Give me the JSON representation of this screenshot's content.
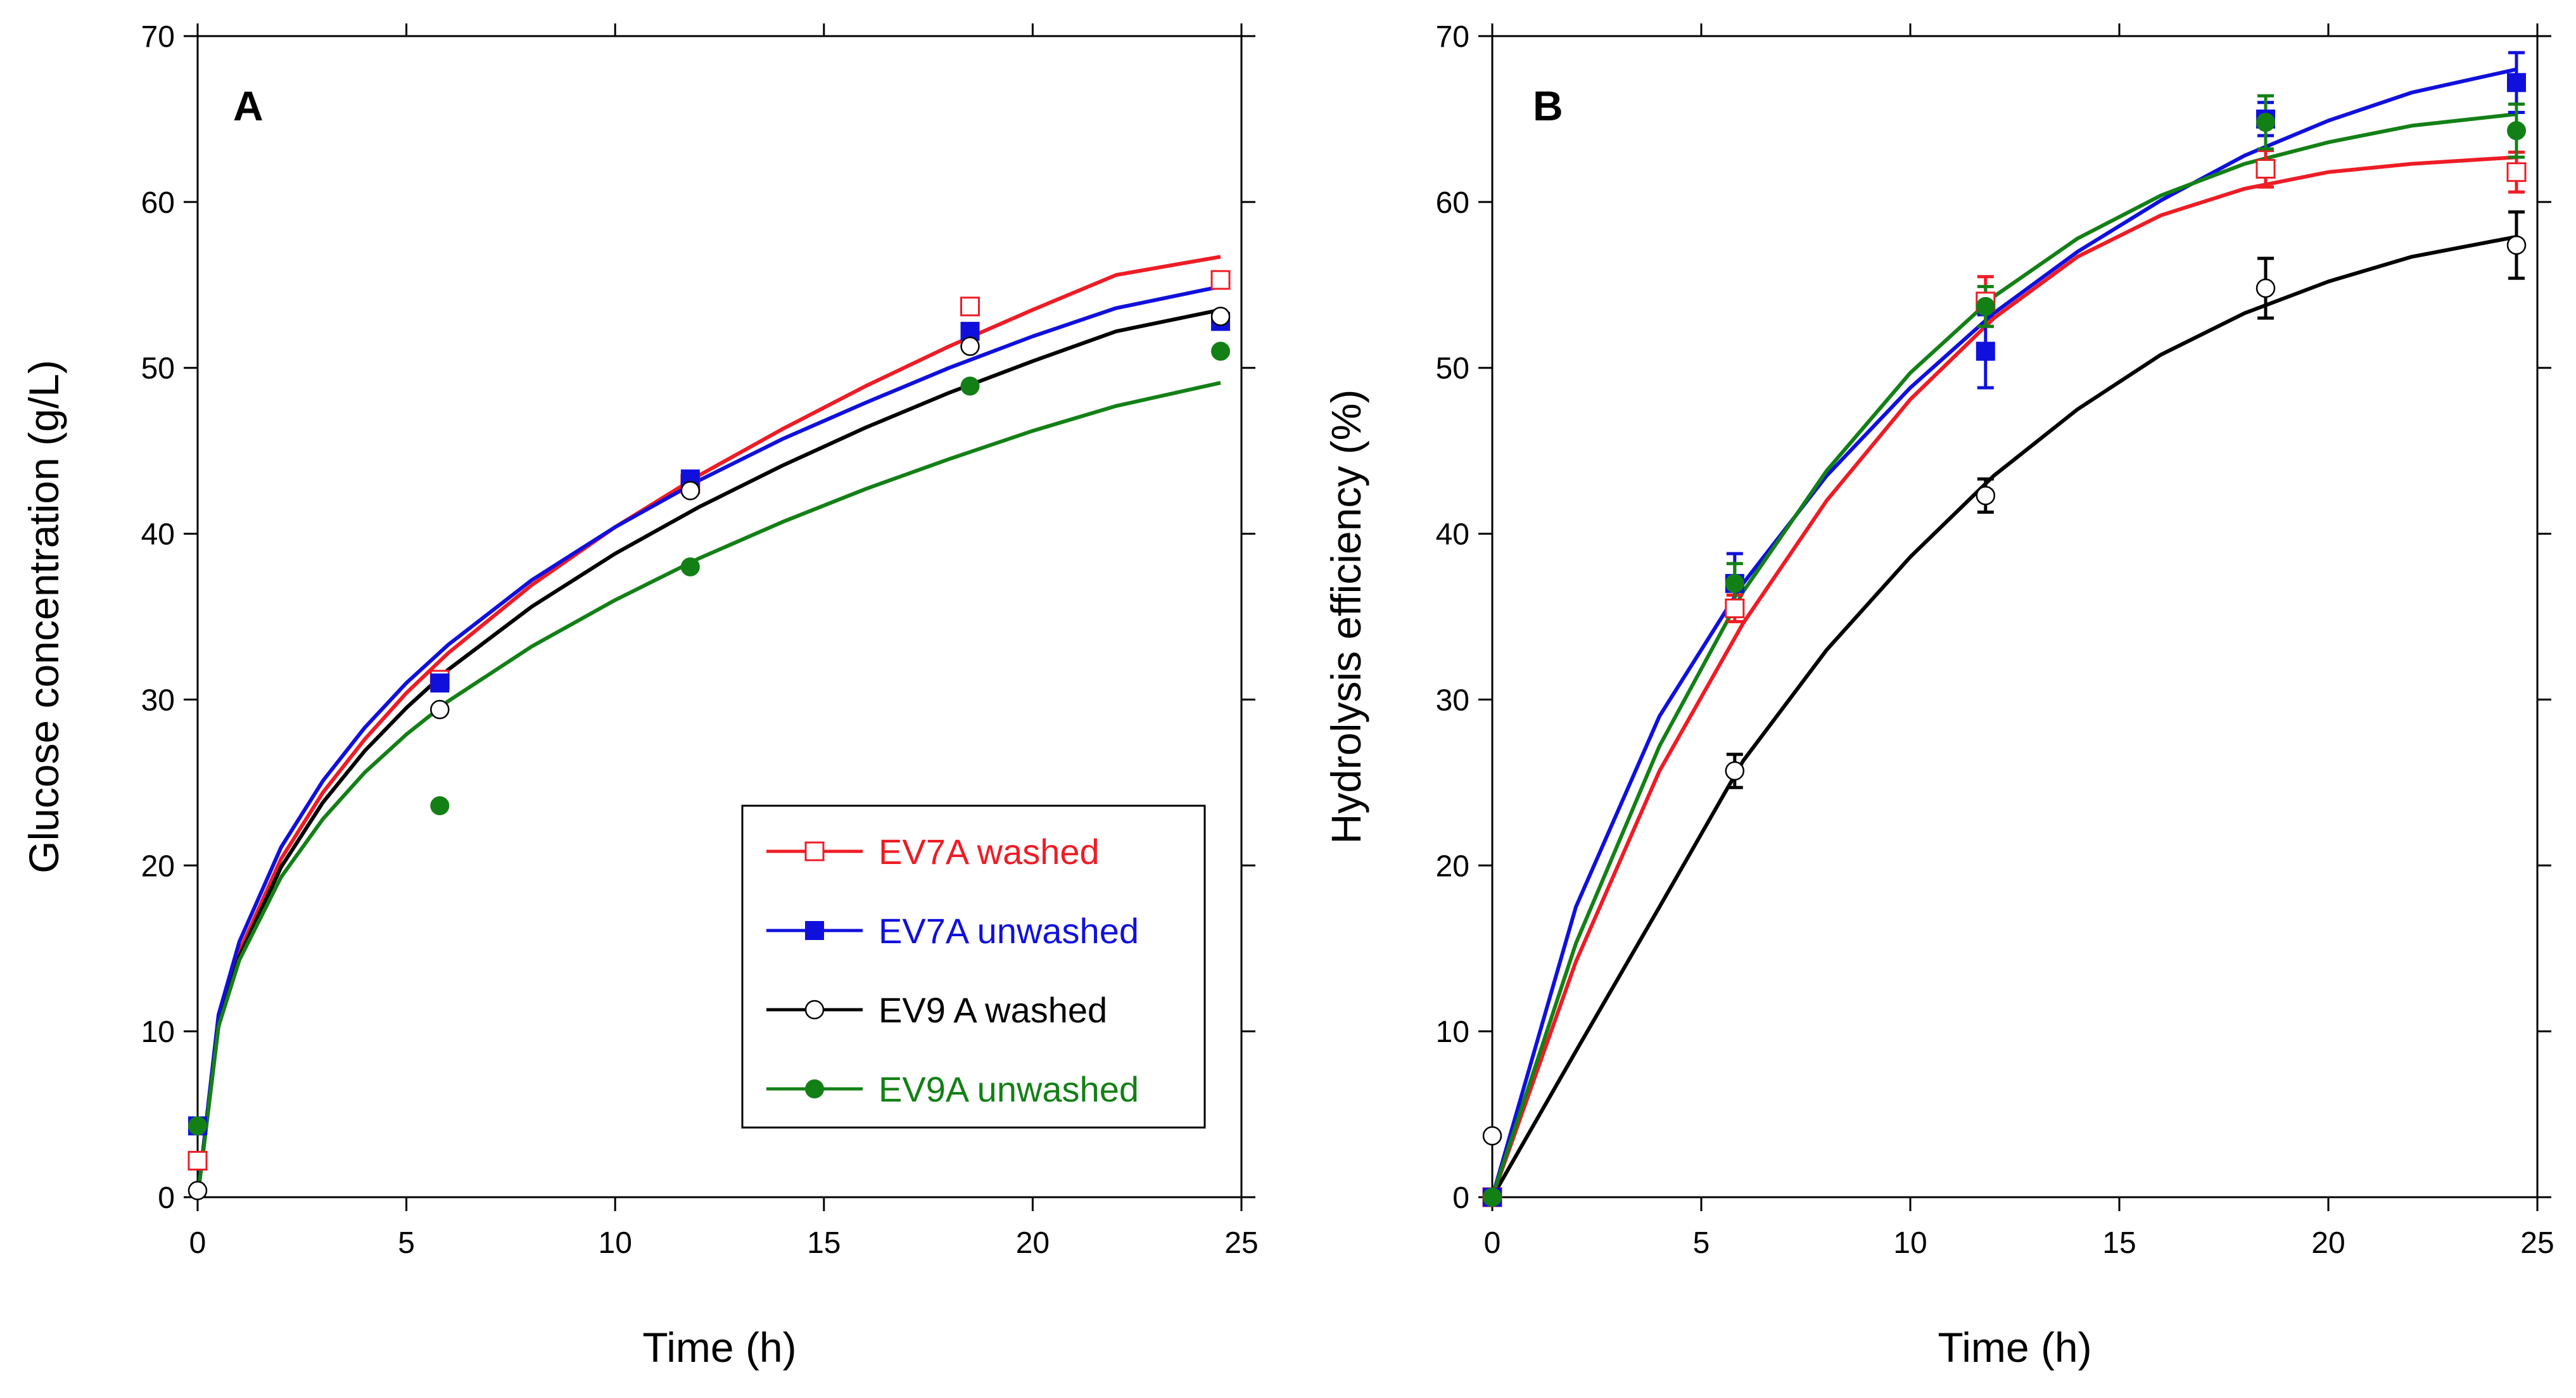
{
  "figure": {
    "panels": [
      "A",
      "B"
    ]
  },
  "chart_data": [
    {
      "type": "scatter",
      "panel_label": "A",
      "title": "",
      "xlabel": "Time (h)",
      "ylabel": "Glucose concentration (g/L)",
      "xlim": [
        0,
        25
      ],
      "ylim": [
        0,
        70
      ],
      "xticks": [
        0,
        5,
        10,
        15,
        20,
        25
      ],
      "yticks": [
        0,
        10,
        20,
        30,
        40,
        50,
        60,
        70
      ],
      "legend_position": "bottom-right",
      "series": [
        {
          "name": "EV7A washed",
          "color": "#ee1c25",
          "marker": "open-square",
          "points": [
            [
              0,
              2.2
            ],
            [
              5.8,
              31.2
            ],
            [
              11.8,
              43.0
            ],
            [
              18.5,
              53.7
            ],
            [
              24.5,
              55.3
            ]
          ],
          "fit": [
            [
              0,
              0
            ],
            [
              0.5,
              10.5
            ],
            [
              1,
              14.8
            ],
            [
              2,
              20.4
            ],
            [
              3,
              24.4
            ],
            [
              4,
              27.6
            ],
            [
              5,
              30.4
            ],
            [
              6,
              32.8
            ],
            [
              8,
              36.9
            ],
            [
              10,
              40.4
            ],
            [
              12,
              43.5
            ],
            [
              14,
              46.3
            ],
            [
              16,
              48.9
            ],
            [
              18,
              51.3
            ],
            [
              20,
              53.5
            ],
            [
              22,
              55.6
            ],
            [
              24.5,
              56.7
            ]
          ]
        },
        {
          "name": "EV7A unwashed",
          "color": "#1010dd",
          "marker": "filled-square",
          "points": [
            [
              0,
              4.3
            ],
            [
              5.8,
              31.0
            ],
            [
              11.8,
              43.3
            ],
            [
              18.5,
              52.2
            ],
            [
              24.5,
              52.8
            ]
          ],
          "fit": [
            [
              0,
              0
            ],
            [
              0.5,
              11.0
            ],
            [
              1,
              15.4
            ],
            [
              2,
              21.1
            ],
            [
              3,
              25.1
            ],
            [
              4,
              28.3
            ],
            [
              5,
              31.0
            ],
            [
              6,
              33.3
            ],
            [
              8,
              37.2
            ],
            [
              10,
              40.4
            ],
            [
              12,
              43.2
            ],
            [
              14,
              45.7
            ],
            [
              16,
              47.9
            ],
            [
              18,
              50.0
            ],
            [
              20,
              51.9
            ],
            [
              22,
              53.6
            ],
            [
              24.5,
              54.9
            ]
          ]
        },
        {
          "name": "EV9 A washed",
          "color": "#000000",
          "marker": "open-circle",
          "points": [
            [
              0,
              0.4
            ],
            [
              5.8,
              29.4
            ],
            [
              11.8,
              42.6
            ],
            [
              18.5,
              51.3
            ],
            [
              24.5,
              53.1
            ]
          ],
          "fit": [
            [
              0,
              0
            ],
            [
              0.5,
              10.3
            ],
            [
              1,
              14.5
            ],
            [
              2,
              19.9
            ],
            [
              3,
              23.8
            ],
            [
              4,
              26.9
            ],
            [
              5,
              29.5
            ],
            [
              6,
              31.8
            ],
            [
              8,
              35.6
            ],
            [
              10,
              38.8
            ],
            [
              12,
              41.6
            ],
            [
              14,
              44.1
            ],
            [
              16,
              46.4
            ],
            [
              18,
              48.5
            ],
            [
              20,
              50.4
            ],
            [
              22,
              52.2
            ],
            [
              24.5,
              53.5
            ]
          ]
        },
        {
          "name": "EV9A unwashed",
          "color": "#138016",
          "marker": "filled-circle",
          "points": [
            [
              0,
              4.3
            ],
            [
              5.8,
              23.6
            ],
            [
              11.8,
              38.0
            ],
            [
              18.5,
              48.9
            ],
            [
              24.5,
              51.0
            ]
          ],
          "fit": [
            [
              0,
              0
            ],
            [
              0.5,
              10.3
            ],
            [
              1,
              14.3
            ],
            [
              2,
              19.3
            ],
            [
              3,
              22.8
            ],
            [
              4,
              25.6
            ],
            [
              5,
              27.9
            ],
            [
              6,
              29.9
            ],
            [
              8,
              33.2
            ],
            [
              10,
              36.0
            ],
            [
              12,
              38.5
            ],
            [
              14,
              40.7
            ],
            [
              16,
              42.7
            ],
            [
              18,
              44.5
            ],
            [
              20,
              46.2
            ],
            [
              22,
              47.7
            ],
            [
              24.5,
              49.1
            ]
          ]
        }
      ]
    },
    {
      "type": "scatter",
      "panel_label": "B",
      "title": "",
      "xlabel": "Time (h)",
      "ylabel": "Hydrolysis efficiency (%)",
      "xlim": [
        0,
        25
      ],
      "ylim": [
        0,
        70
      ],
      "xticks": [
        0,
        5,
        10,
        15,
        20,
        25
      ],
      "yticks": [
        0,
        10,
        20,
        30,
        40,
        50,
        60,
        70
      ],
      "series": [
        {
          "name": "EV7A washed",
          "color": "#ee1c25",
          "marker": "open-square",
          "points": [
            [
              0,
              0
            ],
            [
              5.8,
              35.5
            ],
            [
              11.8,
              54.0
            ],
            [
              18.5,
              62.0
            ],
            [
              24.5,
              61.8
            ]
          ],
          "errors": [
            0,
            0.8,
            1.5,
            1.1,
            1.2
          ],
          "fit": [
            [
              0,
              0
            ],
            [
              2,
              14.2
            ],
            [
              4,
              25.7
            ],
            [
              6,
              34.6
            ],
            [
              8,
              42.0
            ],
            [
              10,
              48.1
            ],
            [
              12,
              53.0
            ],
            [
              14,
              56.7
            ],
            [
              16,
              59.2
            ],
            [
              18,
              60.8
            ],
            [
              20,
              61.8
            ],
            [
              22,
              62.3
            ],
            [
              24.5,
              62.7
            ]
          ]
        },
        {
          "name": "EV7A unwashed",
          "color": "#1010dd",
          "marker": "filled-square",
          "points": [
            [
              0,
              0
            ],
            [
              5.8,
              37.0
            ],
            [
              11.8,
              51.0
            ],
            [
              18.5,
              65.0
            ],
            [
              24.5,
              67.2
            ]
          ],
          "errors": [
            0,
            1.8,
            2.2,
            1.0,
            1.8
          ],
          "fit": [
            [
              0,
              0
            ],
            [
              2,
              17.5
            ],
            [
              4,
              29.0
            ],
            [
              6,
              37.0
            ],
            [
              8,
              43.5
            ],
            [
              10,
              48.8
            ],
            [
              12,
              53.3
            ],
            [
              14,
              57.0
            ],
            [
              16,
              60.1
            ],
            [
              18,
              62.8
            ],
            [
              20,
              64.9
            ],
            [
              22,
              66.6
            ],
            [
              24.5,
              68.0
            ]
          ]
        },
        {
          "name": "EV9 A washed",
          "color": "#000000",
          "marker": "open-circle",
          "points": [
            [
              0,
              3.7
            ],
            [
              5.8,
              25.7
            ],
            [
              11.8,
              42.3
            ],
            [
              18.5,
              54.8
            ],
            [
              24.5,
              57.4
            ]
          ],
          "errors": [
            0,
            1.0,
            1.0,
            1.8,
            2.0
          ],
          "fit": [
            [
              0,
              0
            ],
            [
              2,
              8.8
            ],
            [
              4,
              17.5
            ],
            [
              6,
              26.3
            ],
            [
              8,
              33.0
            ],
            [
              10,
              38.6
            ],
            [
              12,
              43.5
            ],
            [
              14,
              47.5
            ],
            [
              16,
              50.8
            ],
            [
              18,
              53.3
            ],
            [
              20,
              55.2
            ],
            [
              22,
              56.7
            ],
            [
              24.5,
              57.9
            ]
          ]
        },
        {
          "name": "EV9A unwashed",
          "color": "#138016",
          "marker": "filled-circle",
          "points": [
            [
              0,
              0
            ],
            [
              5.8,
              37.0
            ],
            [
              11.8,
              53.7
            ],
            [
              18.5,
              64.8
            ],
            [
              24.5,
              64.3
            ]
          ],
          "errors": [
            0,
            1.2,
            1.2,
            1.6,
            1.6
          ],
          "fit": [
            [
              0,
              0
            ],
            [
              2,
              15.3
            ],
            [
              4,
              27.2
            ],
            [
              6,
              36.5
            ],
            [
              8,
              43.8
            ],
            [
              10,
              49.7
            ],
            [
              12,
              54.3
            ],
            [
              14,
              57.8
            ],
            [
              16,
              60.4
            ],
            [
              18,
              62.3
            ],
            [
              20,
              63.6
            ],
            [
              22,
              64.6
            ],
            [
              24.5,
              65.3
            ]
          ]
        }
      ]
    }
  ]
}
